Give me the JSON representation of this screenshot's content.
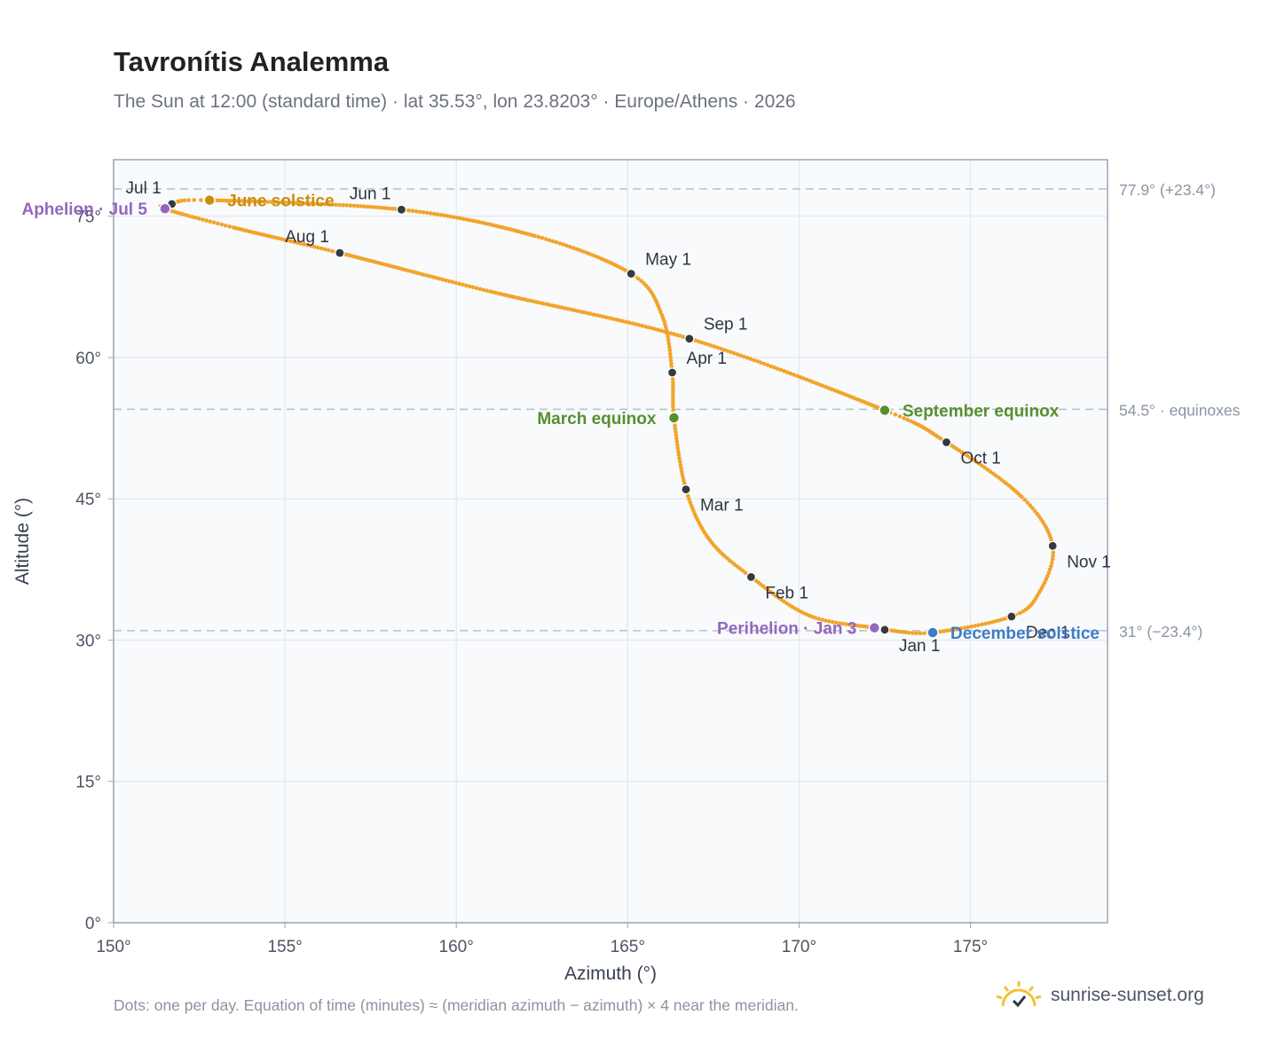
{
  "header": {
    "title": "Tavronítis Analemma",
    "subtitle": "The Sun at 12:00 (standard time) · lat 35.53°, lon 23.8203° · Europe/Athens · 2026"
  },
  "footer": {
    "note": "Dots: one per day. Equation of time (minutes) ≈ (meridian azimuth − azimuth) × 4 near the meridian.",
    "brand": "sunrise-sunset.org",
    "brand_icon": "sun-logo-icon"
  },
  "colors": {
    "curve": "#f2a42a",
    "month_dot": "#343a40",
    "solstice_june": "#c98f10",
    "equinox": "#56902f",
    "solstice_december": "#3d7cc4",
    "apsis": "#9467bd",
    "reference_line": "#b9c4d0",
    "plot_bg": "#f8fafc",
    "grid": "#e3e8ee",
    "axis": "#9aa5b4"
  },
  "chart_data": {
    "type": "scatter",
    "title": "Tavronítis Analemma",
    "xlabel": "Azimuth (°)",
    "ylabel": "Altitude (°)",
    "xlim": [
      150,
      179
    ],
    "ylim": [
      0,
      81
    ],
    "x_ticks": [
      150,
      155,
      160,
      165,
      170,
      175
    ],
    "y_ticks": [
      0,
      15,
      30,
      45,
      60,
      75
    ],
    "x_tick_labels": [
      "150°",
      "155°",
      "160°",
      "165°",
      "170°",
      "175°"
    ],
    "y_tick_labels": [
      "0°",
      "15°",
      "30°",
      "45°",
      "60°",
      "75°"
    ],
    "grid": true,
    "daily_series": "one dot per day",
    "path_keypoints": [
      {
        "date": "Jan 1",
        "az": 172.5,
        "alt": 31.1
      },
      {
        "date": "Jan 3",
        "az": 172.2,
        "alt": 31.3
      },
      {
        "date": "Jan 12",
        "az": 170.3,
        "alt": 32.6
      },
      {
        "date": "Feb 1",
        "az": 168.6,
        "alt": 36.7
      },
      {
        "date": "Feb 15",
        "az": 167.4,
        "alt": 40.6
      },
      {
        "date": "Mar 1",
        "az": 166.7,
        "alt": 46.0
      },
      {
        "date": "Mar 20",
        "az": 166.35,
        "alt": 53.6
      },
      {
        "date": "Apr 1",
        "az": 166.3,
        "alt": 58.4
      },
      {
        "date": "Apr 15",
        "az": 166.0,
        "alt": 64.5
      },
      {
        "date": "May 1",
        "az": 165.1,
        "alt": 68.9
      },
      {
        "date": "May 15",
        "az": 162.3,
        "alt": 72.9
      },
      {
        "date": "Jun 1",
        "az": 158.4,
        "alt": 75.7
      },
      {
        "date": "Jun 21",
        "az": 152.8,
        "alt": 76.7
      },
      {
        "date": "Jul 1",
        "az": 151.7,
        "alt": 76.3
      },
      {
        "date": "Jul 5",
        "az": 151.5,
        "alt": 75.8
      },
      {
        "date": "Jul 15",
        "az": 153.5,
        "alt": 73.8
      },
      {
        "date": "Aug 1",
        "az": 156.6,
        "alt": 71.1
      },
      {
        "date": "Aug 15",
        "az": 161.0,
        "alt": 67.0
      },
      {
        "date": "Sep 1",
        "az": 166.8,
        "alt": 62.0
      },
      {
        "date": "Sep 23",
        "az": 172.5,
        "alt": 54.4
      },
      {
        "date": "Oct 1",
        "az": 174.3,
        "alt": 51.0
      },
      {
        "date": "Oct 15",
        "az": 176.5,
        "alt": 45.2
      },
      {
        "date": "Nov 1",
        "az": 177.4,
        "alt": 40.0
      },
      {
        "date": "Nov 15",
        "az": 177.0,
        "alt": 35.0
      },
      {
        "date": "Dec 1",
        "az": 176.2,
        "alt": 32.5
      },
      {
        "date": "Dec 21",
        "az": 173.9,
        "alt": 30.8
      },
      {
        "date": "Dec 31",
        "az": 172.6,
        "alt": 31.05
      }
    ],
    "month_markers": [
      {
        "label": "Jan 1",
        "az": 172.5,
        "alt": 31.1,
        "anchor": "below-right"
      },
      {
        "label": "Feb 1",
        "az": 168.6,
        "alt": 36.7,
        "anchor": "below-right"
      },
      {
        "label": "Mar 1",
        "az": 166.7,
        "alt": 46.0,
        "anchor": "below-right"
      },
      {
        "label": "Apr 1",
        "az": 166.3,
        "alt": 58.4,
        "anchor": "above-right"
      },
      {
        "label": "May 1",
        "az": 165.1,
        "alt": 68.9,
        "anchor": "above-right"
      },
      {
        "label": "Jun 1",
        "az": 158.4,
        "alt": 75.7,
        "anchor": "above-left"
      },
      {
        "label": "Jul 1",
        "az": 151.7,
        "alt": 76.3,
        "anchor": "above-left"
      },
      {
        "label": "Aug 1",
        "az": 156.6,
        "alt": 71.1,
        "anchor": "above-left"
      },
      {
        "label": "Sep 1",
        "az": 166.8,
        "alt": 62.0,
        "anchor": "above-right"
      },
      {
        "label": "Oct 1",
        "az": 174.3,
        "alt": 51.0,
        "anchor": "below-right"
      },
      {
        "label": "Nov 1",
        "az": 177.4,
        "alt": 40.0,
        "anchor": "below-right"
      },
      {
        "label": "Dec 1",
        "az": 176.2,
        "alt": 32.5,
        "anchor": "below-right"
      }
    ],
    "events": [
      {
        "label": "June solstice",
        "az": 152.8,
        "alt": 76.7,
        "color": "#c98f10",
        "side": "right"
      },
      {
        "label": "March equinox",
        "az": 166.35,
        "alt": 53.6,
        "color": "#56902f",
        "side": "left"
      },
      {
        "label": "September equinox",
        "az": 172.5,
        "alt": 54.4,
        "color": "#56902f",
        "side": "right"
      },
      {
        "label": "December solstice",
        "az": 173.9,
        "alt": 30.8,
        "color": "#3d7cc4",
        "side": "right"
      },
      {
        "label": "Aphelion · Jul 5",
        "az": 151.5,
        "alt": 75.8,
        "color": "#9467bd",
        "side": "left"
      },
      {
        "label": "Perihelion · Jan 3",
        "az": 172.2,
        "alt": 31.3,
        "color": "#9467bd",
        "side": "left"
      }
    ],
    "reference_lines": [
      {
        "alt": 77.9,
        "label": "77.9° (+23.4°)"
      },
      {
        "alt": 54.5,
        "label": "54.5° · equinoxes"
      },
      {
        "alt": 31,
        "label": "31° (−23.4°)"
      }
    ]
  }
}
